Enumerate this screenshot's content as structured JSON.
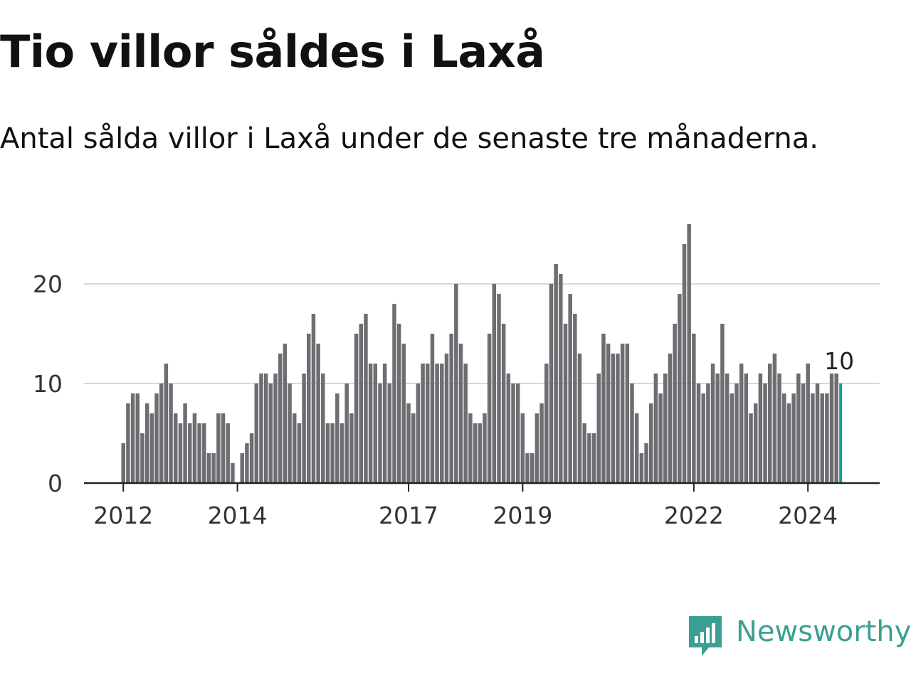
{
  "title": "Tio villor såldes i Laxå",
  "subtitle": "Antal sålda villor i Laxå under de senaste tre månaderna.",
  "brand": {
    "name": "Newsworthy",
    "color": "#3aa093",
    "icon": "newsworthy-bar-chart-logo-icon"
  },
  "colors": {
    "bar": "#6e6d72",
    "highlight": "#1a9e8f",
    "grid": "#d9d9d9",
    "axis": "#222222"
  },
  "chart_data": {
    "type": "bar",
    "title": "Tio villor såldes i Laxå",
    "subtitle": "Antal sålda villor i Laxå under de senaste tre månaderna.",
    "xlabel": "",
    "ylabel": "",
    "ylim": [
      0,
      27
    ],
    "y_ticks": [
      0,
      10,
      20
    ],
    "x_ticks": [
      {
        "label": "2012",
        "month_index": 0
      },
      {
        "label": "2014",
        "month_index": 24
      },
      {
        "label": "2017",
        "month_index": 60
      },
      {
        "label": "2019",
        "month_index": 84
      },
      {
        "label": "2022",
        "month_index": 120
      },
      {
        "label": "2024",
        "month_index": 144
      }
    ],
    "grid": true,
    "first_month": "2012-01",
    "values": [
      4,
      8,
      9,
      9,
      5,
      8,
      7,
      9,
      10,
      12,
      10,
      7,
      6,
      8,
      6,
      7,
      6,
      6,
      3,
      3,
      7,
      7,
      6,
      2,
      0,
      3,
      4,
      5,
      10,
      11,
      11,
      10,
      11,
      13,
      14,
      10,
      7,
      6,
      11,
      15,
      17,
      14,
      11,
      6,
      6,
      9,
      6,
      10,
      7,
      15,
      16,
      17,
      12,
      12,
      10,
      12,
      10,
      18,
      16,
      14,
      8,
      7,
      10,
      12,
      12,
      15,
      12,
      12,
      13,
      15,
      20,
      14,
      12,
      7,
      6,
      6,
      7,
      15,
      20,
      19,
      16,
      11,
      10,
      10,
      7,
      3,
      3,
      7,
      8,
      12,
      20,
      22,
      21,
      16,
      19,
      17,
      13,
      6,
      5,
      5,
      11,
      15,
      14,
      13,
      13,
      14,
      14,
      10,
      7,
      3,
      4,
      8,
      11,
      9,
      11,
      13,
      16,
      19,
      24,
      26,
      15,
      10,
      9,
      10,
      12,
      11,
      16,
      11,
      9,
      10,
      12,
      11,
      7,
      8,
      11,
      10,
      12,
      13,
      11,
      9,
      8,
      9,
      11,
      10,
      12,
      9,
      10,
      9,
      9,
      11,
      11,
      10
    ],
    "highlight_last": true,
    "highlight_label": "10"
  }
}
